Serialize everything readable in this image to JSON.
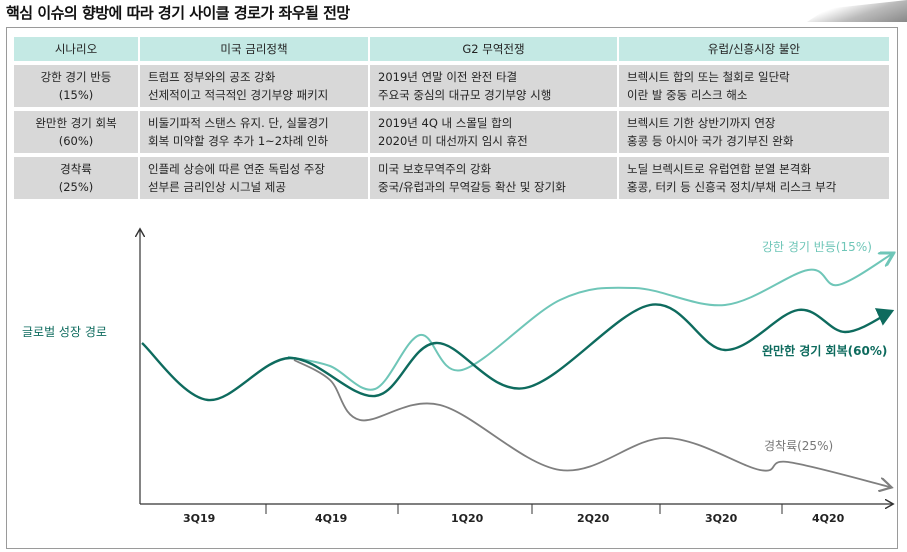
{
  "title": "핵심 이슈의 향방에 따라 경기 사이클 경로가 좌우될 전망",
  "table": {
    "headers": [
      "시나리오",
      "미국 금리정책",
      "G2 무역전쟁",
      "유럽/신흥시장 불안"
    ],
    "rows": [
      {
        "scenario": "강한 경기 반등",
        "prob": "(15%)",
        "us": [
          "트럼프 정부와의 공조 강화",
          "선제적이고 적극적인 경기부양 패키지"
        ],
        "g2": [
          "2019년 연말 이전 완전 타결",
          "주요국 중심의 대규모 경기부양 시행"
        ],
        "eu": [
          "브렉시트 합의 또는 철회로 일단락",
          "이란 발 중동 리스크 해소"
        ]
      },
      {
        "scenario": "완만한 경기 회복",
        "prob": "(60%)",
        "us": [
          "비둘기파적 스탠스 유지. 단, 실물경기",
          "회복 미약할 경우 추가 1~2차례 인하"
        ],
        "g2": [
          "2019년 4Q 내 스몰딜 합의",
          "2020년 미 대선까지 임시 휴전"
        ],
        "eu": [
          "브렉시트 기한 상반기까지 연장",
          "홍콩 등 아시아 국가 경기부진 완화"
        ]
      },
      {
        "scenario": "경착륙",
        "prob": "(25%)",
        "us": [
          "인플레 상승에 따른 연준 독립성 주장",
          "섣부른 금리인상 시그널 제공"
        ],
        "g2": [
          "미국 보호무역주의 강화",
          "중국/유럽과의 무역갈등 확산 및 장기화"
        ],
        "eu": [
          "노딜 브렉시트로 유럽연합 분열 본격화",
          "홍콩, 터키 등 신흥국 정치/부채 리스크 부각"
        ]
      }
    ]
  },
  "diagram": {
    "ylabel": "글로벌 성장 경로",
    "x_ticks": [
      "3Q19",
      "4Q19",
      "1Q20",
      "2Q20",
      "3Q20",
      "4Q20"
    ],
    "paths": [
      {
        "name": "강한 경기 반등(15%)",
        "color": "#6fc6b8"
      },
      {
        "name": "완만한 경기 회복(60%)",
        "color": "#0e6b5e"
      },
      {
        "name": "경착륙(25%)",
        "color": "#7f7f7f"
      }
    ]
  }
}
